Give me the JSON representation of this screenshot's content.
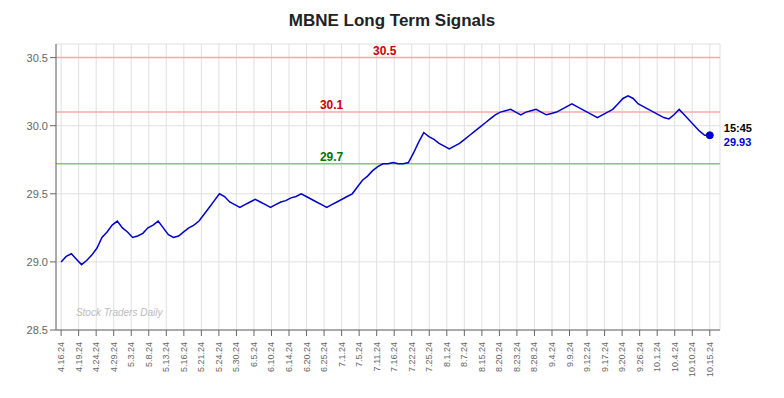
{
  "chart_data": {
    "type": "line",
    "title": "MBNE Long Term Signals",
    "x": [
      0,
      1,
      2,
      3,
      4,
      5,
      6,
      7,
      8,
      9,
      10,
      11,
      12,
      13,
      14,
      15,
      16,
      17,
      18,
      19,
      20,
      21,
      22,
      23,
      24,
      25,
      26,
      27,
      28,
      29,
      30,
      31,
      32,
      33,
      34,
      35,
      36,
      37,
      38,
      39,
      40,
      41,
      42,
      43,
      44,
      45,
      46,
      47,
      48,
      49,
      50,
      51,
      52,
      53,
      54,
      55,
      56,
      57,
      58,
      59,
      60,
      61,
      62,
      63,
      64,
      65,
      66,
      67,
      68,
      69,
      70,
      71,
      72,
      73,
      74,
      75,
      76,
      77,
      78,
      79,
      80,
      81,
      82,
      83,
      84,
      85,
      86,
      87,
      88,
      89,
      90,
      91,
      92,
      93,
      94,
      95,
      96,
      97,
      98,
      99,
      100,
      101,
      102,
      103,
      104,
      105,
      106,
      107,
      108,
      109,
      110,
      111,
      112,
      113,
      114,
      115,
      116,
      117,
      118,
      119,
      120,
      121,
      122,
      123,
      124,
      125,
      126,
      127
    ],
    "values": [
      29.0,
      29.04,
      29.06,
      29.02,
      28.98,
      29.01,
      29.05,
      29.1,
      29.18,
      29.22,
      29.27,
      29.3,
      29.25,
      29.22,
      29.18,
      29.19,
      29.21,
      29.25,
      29.27,
      29.3,
      29.25,
      29.2,
      29.18,
      29.19,
      29.22,
      29.25,
      29.27,
      29.3,
      29.35,
      29.4,
      29.45,
      29.5,
      29.48,
      29.44,
      29.42,
      29.4,
      29.42,
      29.44,
      29.46,
      29.44,
      29.42,
      29.4,
      29.42,
      29.44,
      29.45,
      29.47,
      29.48,
      29.5,
      29.48,
      29.46,
      29.44,
      29.42,
      29.4,
      29.42,
      29.44,
      29.46,
      29.48,
      29.5,
      29.55,
      29.6,
      29.63,
      29.67,
      29.7,
      29.72,
      29.72,
      29.73,
      29.72,
      29.72,
      29.73,
      29.8,
      29.88,
      29.95,
      29.92,
      29.9,
      29.87,
      29.85,
      29.83,
      29.85,
      29.87,
      29.9,
      29.93,
      29.96,
      29.99,
      30.02,
      30.05,
      30.08,
      30.1,
      30.11,
      30.12,
      30.1,
      30.08,
      30.1,
      30.11,
      30.12,
      30.1,
      30.08,
      30.09,
      30.1,
      30.12,
      30.14,
      30.16,
      30.14,
      30.12,
      30.1,
      30.08,
      30.06,
      30.08,
      30.1,
      30.12,
      30.16,
      30.2,
      30.22,
      30.2,
      30.16,
      30.14,
      30.12,
      30.1,
      30.08,
      30.06,
      30.05,
      30.08,
      30.12,
      30.08,
      30.04,
      30.0,
      29.96,
      29.93,
      29.93
    ],
    "color": "#0000cc",
    "marker": "end",
    "xlim": [
      -1,
      129
    ],
    "xticks": [
      {
        "value": 0,
        "label": "4.16.24"
      },
      {
        "value": 3.4324,
        "label": "4.19.24"
      },
      {
        "value": 6.8649,
        "label": "4.24.24"
      },
      {
        "value": 10.2973,
        "label": "4.29.24"
      },
      {
        "value": 13.7297,
        "label": "5.3.24"
      },
      {
        "value": 17.1622,
        "label": "5.8.24"
      },
      {
        "value": 20.5946,
        "label": "5.13.24"
      },
      {
        "value": 24.027,
        "label": "5.16.24"
      },
      {
        "value": 27.4595,
        "label": "5.21.24"
      },
      {
        "value": 30.8919,
        "label": "5.24.24"
      },
      {
        "value": 34.3243,
        "label": "5.30.24"
      },
      {
        "value": 37.7568,
        "label": "6.5.24"
      },
      {
        "value": 41.1892,
        "label": "6.10.24"
      },
      {
        "value": 44.6216,
        "label": "6.14.24"
      },
      {
        "value": 48.0541,
        "label": "6.20.24"
      },
      {
        "value": 51.4865,
        "label": "6.25.24"
      },
      {
        "value": 54.9189,
        "label": "7.1.24"
      },
      {
        "value": 58.3514,
        "label": "7.5.24"
      },
      {
        "value": 61.7838,
        "label": "7.11.24"
      },
      {
        "value": 65.2162,
        "label": "7.16.24"
      },
      {
        "value": 68.6486,
        "label": "7.22.24"
      },
      {
        "value": 72.0811,
        "label": "7.25.24"
      },
      {
        "value": 75.5135,
        "label": "8.1.24"
      },
      {
        "value": 78.9459,
        "label": "8.7.24"
      },
      {
        "value": 82.3784,
        "label": "8.15.24"
      },
      {
        "value": 85.8108,
        "label": "8.20.24"
      },
      {
        "value": 89.2432,
        "label": "8.23.24"
      },
      {
        "value": 92.6757,
        "label": "8.28.24"
      },
      {
        "value": 96.1081,
        "label": "9.4.24"
      },
      {
        "value": 99.5405,
        "label": "9.9.24"
      },
      {
        "value": 102.973,
        "label": "9.12.24"
      },
      {
        "value": 106.4054,
        "label": "9.17.24"
      },
      {
        "value": 109.8378,
        "label": "9.20.24"
      },
      {
        "value": 113.2703,
        "label": "9.26.24"
      },
      {
        "value": 116.7027,
        "label": "10.1.24"
      },
      {
        "value": 120.1351,
        "label": "10.4.24"
      },
      {
        "value": 123.5676,
        "label": "10.10.24"
      },
      {
        "value": 127,
        "label": "10.15.24"
      }
    ],
    "ylim": [
      28.5,
      30.6
    ],
    "yticks": [
      28.5,
      {
        "value": 29,
        "label": "29.0"
      },
      29.5,
      {
        "value": 30,
        "label": "30.0"
      },
      30.5
    ],
    "grid": true,
    "reference_lines": [
      {
        "value": 30.5,
        "color": "#f4aaaa",
        "label": "30.5",
        "label_color": "#cc0000"
      },
      {
        "value": 30.1,
        "color": "#f4aaaa",
        "label": "30.1",
        "label_color": "#cc0000"
      },
      {
        "value": 29.72,
        "color": "#77cc77",
        "label": "29.7",
        "label_color": "#007700"
      }
    ],
    "annotations": [
      {
        "text": "15:45",
        "color": "#000000"
      },
      {
        "text": "29.93",
        "color": "#0000cc"
      }
    ],
    "watermark": "Stock Traders Daily"
  }
}
